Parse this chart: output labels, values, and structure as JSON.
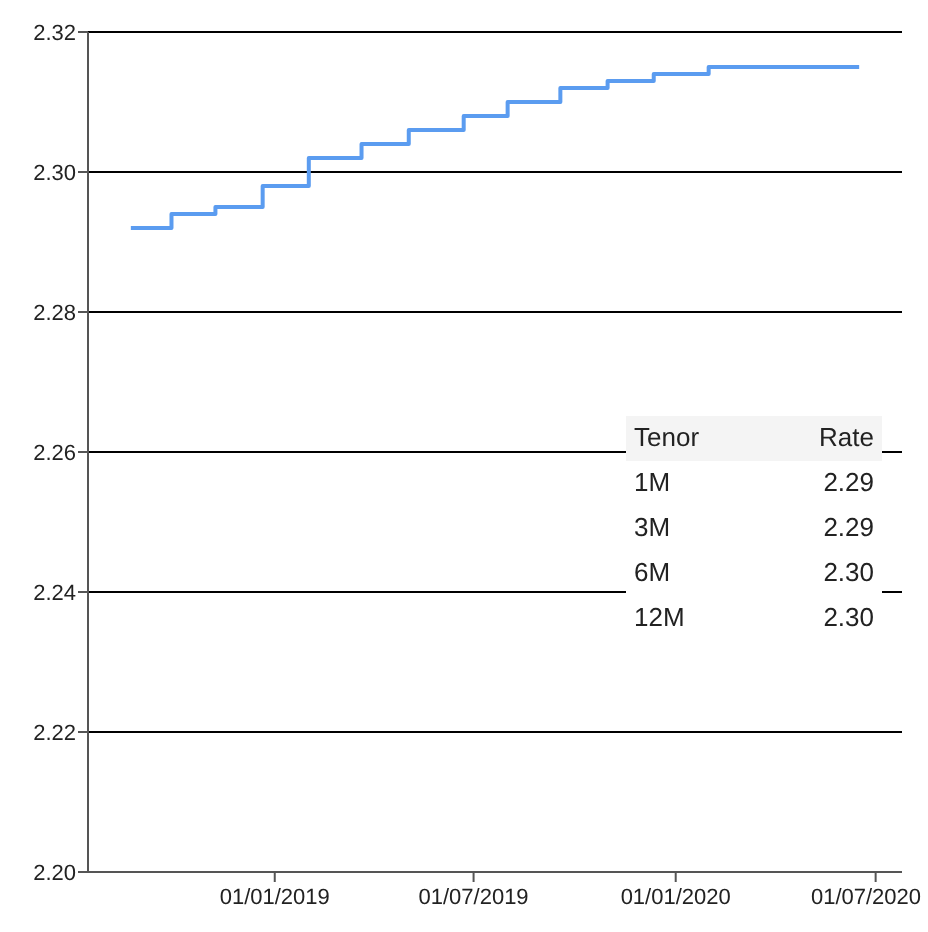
{
  "chart_data": {
    "type": "step",
    "x": [
      "2018-08-23",
      "2018-09-29",
      "2018-11-08",
      "2018-12-21",
      "2019-02-01",
      "2019-03-21",
      "2019-05-03",
      "2019-06-22",
      "2019-08-01",
      "2019-09-18",
      "2019-10-31",
      "2019-12-12",
      "2020-01-31",
      "2020-03-21",
      "2020-05-01",
      "2020-06-16"
    ],
    "series": [
      {
        "color": "#5b9cf0",
        "values": [
          2.292,
          2.294,
          2.295,
          2.298,
          2.302,
          2.304,
          2.306,
          2.308,
          2.31,
          2.312,
          2.313,
          2.314,
          2.315,
          2.315,
          2.315,
          2.315
        ]
      }
    ],
    "xlim": [
      "2018-07-15",
      "2020-07-25"
    ],
    "xticks": [
      {
        "value": "2019-01-01",
        "label": "01/01/2019"
      },
      {
        "value": "2019-07-01",
        "label": "01/07/2019"
      },
      {
        "value": "2020-01-01",
        "label": "01/01/2020"
      },
      {
        "value": "2020-07-01",
        "label": "01/07/2020"
      }
    ],
    "ylim": [
      2.2,
      2.32
    ],
    "yticks": [
      {
        "value": 2.2,
        "label": "2.20"
      },
      {
        "value": 2.22,
        "label": "2.22"
      },
      {
        "value": 2.24,
        "label": "2.24"
      },
      {
        "value": 2.26,
        "label": "2.26"
      },
      {
        "value": 2.28,
        "label": "2.28"
      },
      {
        "value": 2.3,
        "label": "2.30"
      },
      {
        "value": 2.32,
        "label": "2.32"
      }
    ],
    "grid": "y",
    "marker": "none",
    "line_style": "solid",
    "annotations": [
      "Tenor",
      "Rate",
      "1M",
      "2.29",
      "3M",
      "2.29",
      "6M",
      "2.30",
      "12M",
      "2.30"
    ]
  }
}
